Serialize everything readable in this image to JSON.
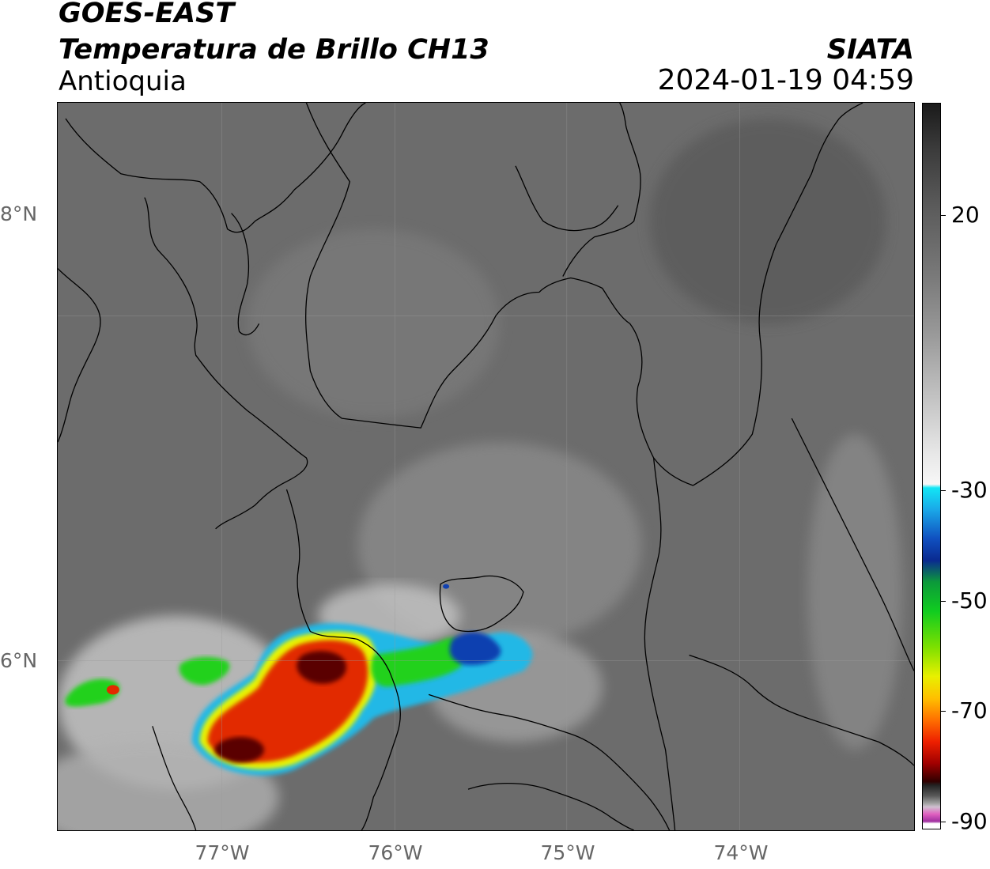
{
  "header": {
    "satellite": "GOES-EAST",
    "product": "Temperatura de Brillo CH13",
    "region": "Antioquia",
    "agency": "SIATA",
    "datetime": "2024-01-19 04:59"
  },
  "map": {
    "extent_lon": [
      -77.95,
      -73.0
    ],
    "extent_lat": [
      5.05,
      9.25
    ],
    "lat_ticks": [
      {
        "value": 8,
        "label": "8°N"
      },
      {
        "value": 6,
        "label": "6°N"
      }
    ],
    "lon_ticks": [
      {
        "value": -77,
        "label": "77°W"
      },
      {
        "value": -76,
        "label": "76°W"
      },
      {
        "value": -75,
        "label": "75°W"
      },
      {
        "value": -74,
        "label": "74°W"
      }
    ],
    "background_color": "#6c6c6c",
    "boundary_color": "#000000"
  },
  "colorbar": {
    "ticks": [
      {
        "value": 20,
        "label": "20"
      },
      {
        "value": -30,
        "label": "-30"
      },
      {
        "value": -50,
        "label": "-50"
      },
      {
        "value": -70,
        "label": "-70"
      },
      {
        "value": -90,
        "label": "-90"
      }
    ]
  }
}
